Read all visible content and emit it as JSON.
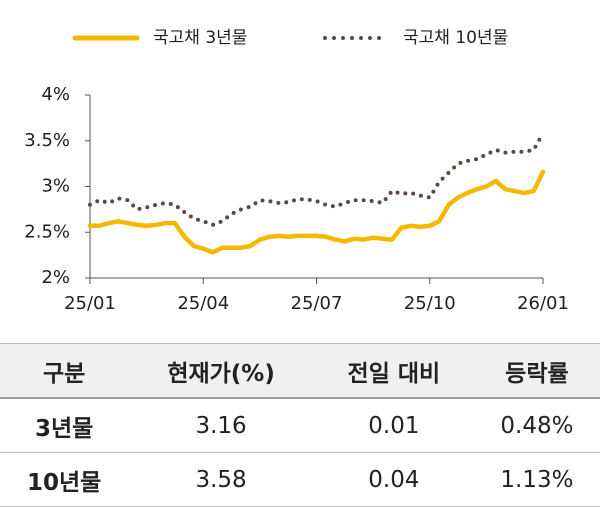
{
  "chart_data": {
    "type": "line",
    "categories": [
      "25/01",
      null,
      null,
      null,
      null,
      null,
      null,
      null,
      null,
      null,
      null,
      null,
      "25/04",
      null,
      null,
      null,
      null,
      null,
      null,
      null,
      null,
      null,
      null,
      null,
      "25/07",
      null,
      null,
      null,
      null,
      null,
      null,
      null,
      null,
      null,
      null,
      null,
      "25/10",
      null,
      null,
      null,
      null,
      null,
      null,
      null,
      null,
      null,
      null,
      null,
      "26/01"
    ],
    "series": [
      {
        "name": "국고채 3년물",
        "color": "#f5b800",
        "style": "solid",
        "values": [
          2.57,
          2.57,
          2.6,
          2.62,
          2.6,
          2.58,
          2.57,
          2.58,
          2.6,
          2.6,
          2.45,
          2.35,
          2.32,
          2.28,
          2.33,
          2.33,
          2.33,
          2.35,
          2.42,
          2.45,
          2.46,
          2.45,
          2.46,
          2.46,
          2.46,
          2.45,
          2.42,
          2.4,
          2.43,
          2.42,
          2.44,
          2.43,
          2.42,
          2.55,
          2.57,
          2.56,
          2.57,
          2.62,
          2.8,
          2.88,
          2.93,
          2.97,
          3.0,
          3.06,
          2.97,
          2.95,
          2.93,
          2.95,
          3.16
        ]
      },
      {
        "name": "국고채 10년물",
        "color": "#5a4a42",
        "style": "dotted",
        "values": [
          2.8,
          2.85,
          2.82,
          2.87,
          2.85,
          2.75,
          2.77,
          2.8,
          2.82,
          2.8,
          2.72,
          2.65,
          2.62,
          2.58,
          2.62,
          2.7,
          2.75,
          2.78,
          2.85,
          2.84,
          2.82,
          2.83,
          2.86,
          2.86,
          2.84,
          2.8,
          2.78,
          2.82,
          2.85,
          2.85,
          2.84,
          2.82,
          2.95,
          2.92,
          2.93,
          2.9,
          2.88,
          3.05,
          3.15,
          3.25,
          3.28,
          3.3,
          3.35,
          3.4,
          3.37,
          3.38,
          3.38,
          3.4,
          3.58
        ]
      }
    ],
    "ylim": [
      2,
      4
    ],
    "yticks": [
      {
        "value": 2,
        "label": "2%"
      },
      {
        "value": 2.5,
        "label": "2.5%"
      },
      {
        "value": 3,
        "label": "3%"
      },
      {
        "value": 3.5,
        "label": "3.5%"
      },
      {
        "value": 4,
        "label": "4%"
      }
    ],
    "legend": "top"
  },
  "table": {
    "header": [
      "구분",
      "현재가(%)",
      "전일 대비",
      "등락률"
    ],
    "rows": [
      [
        "3년물",
        "3.16",
        "0.01",
        "0.48%"
      ],
      [
        "10년물",
        "3.58",
        "0.04",
        "1.13%"
      ]
    ]
  }
}
